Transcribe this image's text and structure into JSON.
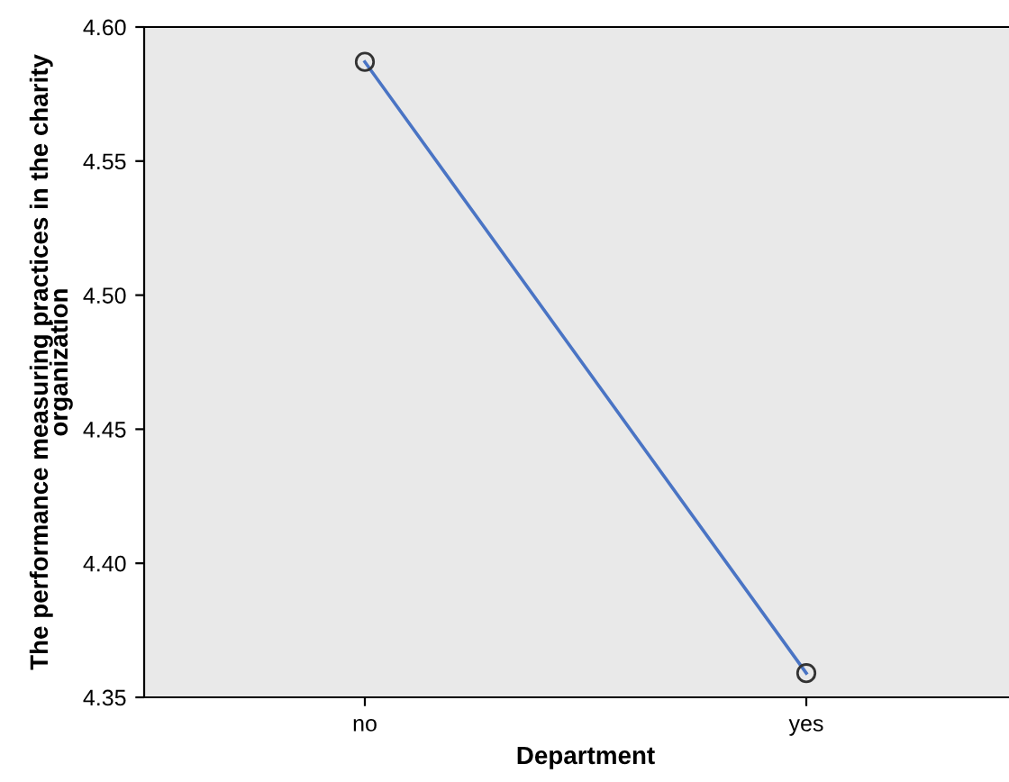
{
  "chart_data": {
    "type": "line",
    "xlabel": "Department",
    "ylabel": "The performance measuring practices in the charity\norganization",
    "categories": [
      "no",
      "yes"
    ],
    "series": [
      {
        "color": "#4a74c4",
        "values": [
          4.587,
          4.359
        ]
      }
    ],
    "ylim": [
      4.35,
      4.6
    ],
    "yticks": [
      {
        "value": 4.35,
        "label": "4.35"
      },
      {
        "value": 4.4,
        "label": "4.40"
      },
      {
        "value": 4.45,
        "label": "4.45"
      },
      {
        "value": 4.5,
        "label": "4.50"
      },
      {
        "value": 4.55,
        "label": "4.55"
      },
      {
        "value": 4.6,
        "label": "4.60"
      }
    ],
    "marker": "circle",
    "line_style": "solid",
    "grid": false,
    "legend": false
  }
}
